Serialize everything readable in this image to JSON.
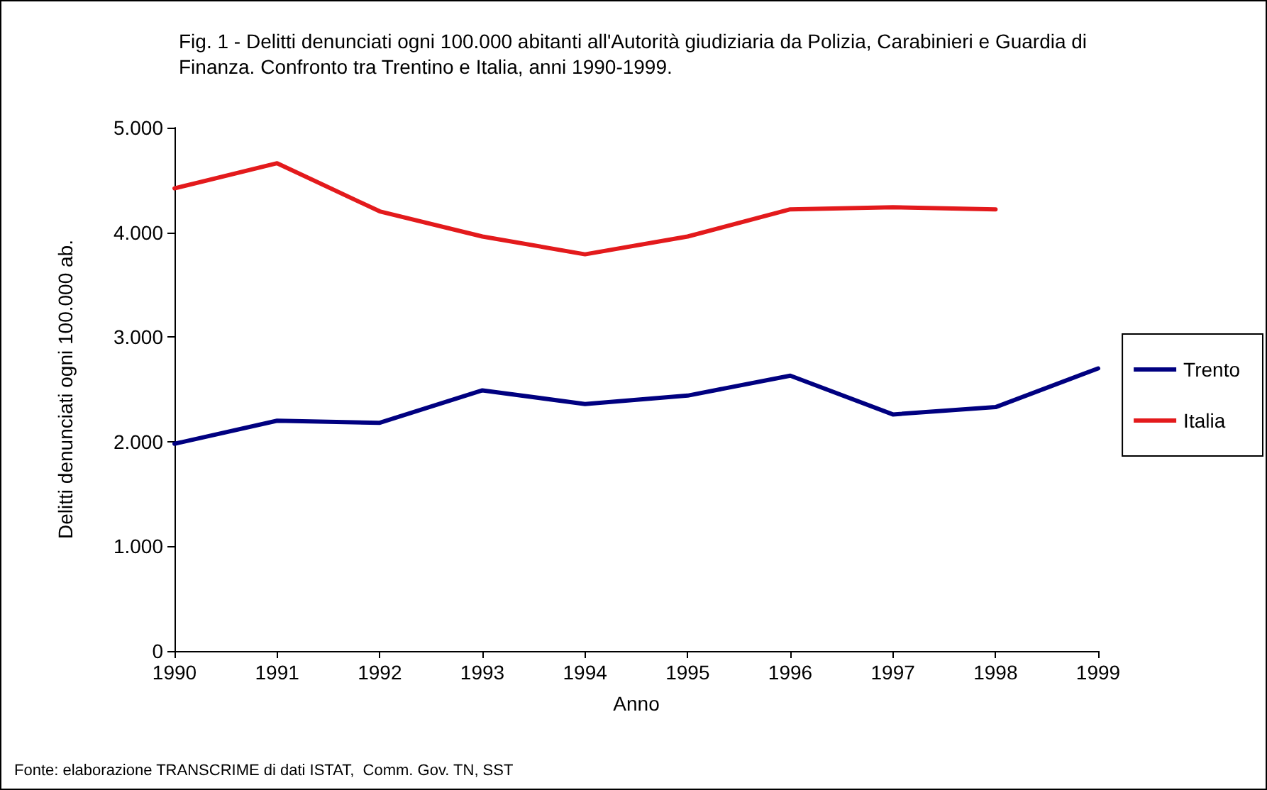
{
  "chart_data": {
    "type": "line",
    "title": "Fig. 1 - Delitti denunciati ogni 100.000 abitanti all'Autorità giudiziaria da Polizia, Carabinieri e Guardia di Finanza. Confronto tra Trentino e Italia, anni 1990-1999.",
    "xlabel": "Anno",
    "ylabel": "Delitti denunciati ogni 100.000 ab.",
    "x": [
      1990,
      1991,
      1992,
      1993,
      1994,
      1995,
      1996,
      1997,
      1998,
      1999
    ],
    "series": [
      {
        "name": "Trento",
        "color": "#000080",
        "values": [
          1980,
          2200,
          2180,
          2490,
          2360,
          2440,
          2630,
          2260,
          2330,
          2700
        ]
      },
      {
        "name": "Italia",
        "color": "#e31a1c",
        "values": [
          4420,
          4660,
          4200,
          3960,
          3790,
          3960,
          4220,
          4240,
          4220,
          null
        ]
      }
    ],
    "xlim": [
      1990,
      1999
    ],
    "xticks": [
      1990,
      1991,
      1992,
      1993,
      1994,
      1995,
      1996,
      1997,
      1998,
      1999
    ],
    "ylim": [
      0,
      5000
    ],
    "yticks": [
      0,
      {
        "value": 1000,
        "label": "1.000"
      },
      {
        "value": 2000,
        "label": "2.000"
      },
      {
        "value": 3000,
        "label": "3.000"
      },
      {
        "value": 4000,
        "label": "4.000"
      },
      {
        "value": 5000,
        "label": "5.000"
      }
    ],
    "grid": false,
    "legend": "right",
    "marker": "none",
    "line_style": "solid",
    "annotations": [
      "Fonte: elaborazione TRANSCRIME di dati ISTAT,  Comm. Gov. TN, SST"
    ]
  }
}
